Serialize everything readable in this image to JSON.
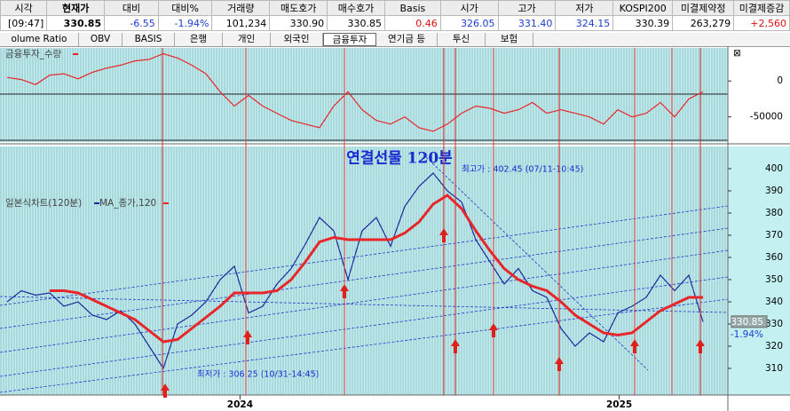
{
  "table": {
    "header": [
      "시각",
      "현재가",
      "대비",
      "대비%",
      "거래량",
      "매도호가",
      "매수호가",
      "Basis",
      "시가",
      "고가",
      "저가",
      "KOSPI200",
      "미결제약정",
      "미결제증감"
    ],
    "rows": [
      [
        "[09:47]",
        "330.85",
        "-6.55",
        "-1.94%",
        "101,234",
        "330.90",
        "330.85",
        "0.46",
        "326.05",
        "331.40",
        "324.15",
        "330.39",
        "263,279",
        "+2,560"
      ]
    ]
  },
  "tabs": [
    "olume Ratio",
    "OBV",
    "BASIS",
    "은행",
    "개인",
    "외국인",
    "금융투자",
    "연기금 등",
    "투신",
    "보험"
  ],
  "chart_data": [
    {
      "type": "line",
      "series": [
        {
          "name": "금융투자_수량",
          "color": "#e8262a",
          "values": [
            5000,
            2000,
            -5000,
            8000,
            10000,
            3000,
            12000,
            18000,
            22000,
            28000,
            30000,
            38000,
            32000,
            22000,
            10000,
            -15000,
            -35000,
            -20000,
            -35000,
            -45000,
            -55000,
            -60000,
            -65000,
            -35000,
            -15000,
            -40000,
            -55000,
            -60000,
            -50000,
            -65000,
            -70000,
            -60000,
            -45000,
            -35000,
            -38000,
            -45000,
            -40000,
            -30000,
            -45000,
            -40000,
            -45000,
            -50000,
            -60000,
            -40000,
            -50000,
            -45000,
            -30000,
            -50000,
            -25000,
            -15000
          ]
        }
      ],
      "xlim": [
        -0.5,
        50.75
      ],
      "ylim": [
        -85000,
        46000
      ],
      "yticks": [
        0,
        -50000
      ]
    },
    {
      "type": "line",
      "title": "연결선물 120분",
      "annotations": [
        "최고가 : 402.45 (07/11-10:45)",
        "최저가 : 306.25 (10/31-14:45)"
      ],
      "series": [
        {
          "name": "일본식차트(120분)",
          "color": "#1b2a9c",
          "values": [
            340,
            345,
            343,
            344,
            338,
            340,
            334,
            332,
            336,
            330,
            320,
            310,
            330,
            334,
            340,
            350,
            356,
            335,
            338,
            348,
            355,
            366,
            378,
            372,
            350,
            372,
            378,
            365,
            383,
            392,
            398,
            390,
            385,
            368,
            358,
            348,
            355,
            345,
            342,
            328,
            320,
            326,
            322,
            335,
            338,
            342,
            352,
            345,
            352,
            331
          ]
        },
        {
          "name": "MA_종가,120",
          "color": "#e8262a",
          "values": [
            null,
            null,
            null,
            345,
            345,
            344,
            341,
            338,
            335,
            332,
            327,
            322,
            323,
            328,
            333,
            338,
            344,
            344,
            344,
            345,
            350,
            358,
            367,
            369,
            368,
            368,
            368,
            368,
            371,
            376,
            384,
            388,
            382,
            372,
            363,
            355,
            350,
            347,
            345,
            340,
            334,
            330,
            326,
            325,
            326,
            331,
            336,
            339,
            342,
            342
          ]
        }
      ],
      "xlim": [
        -0.5,
        50.75
      ],
      "ylim": [
        298,
        410
      ],
      "yticks": [
        310,
        320,
        330,
        340,
        350,
        360,
        370,
        380,
        390,
        400
      ],
      "xticks": [
        {
          "value": 16.4,
          "label": "2024"
        },
        {
          "value": 43.1,
          "label": "2025"
        }
      ]
    }
  ]
}
